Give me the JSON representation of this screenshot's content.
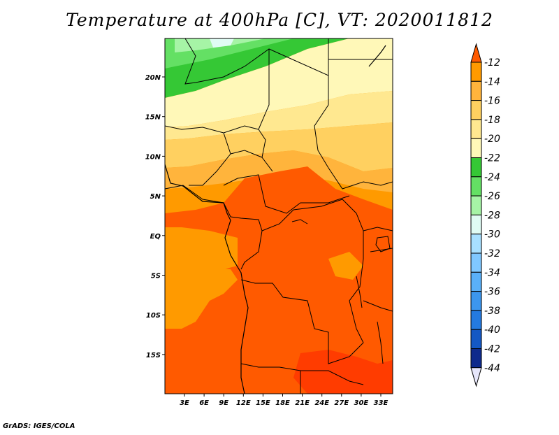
{
  "title": "Temperature at 400hPa [C], VT: 2020011812",
  "credit": "GrADS: IGES/COLA",
  "map": {
    "lon_labels": [
      "3E",
      "6E",
      "9E",
      "12E",
      "15E",
      "18E",
      "21E",
      "24E",
      "27E",
      "30E",
      "33E"
    ],
    "lat_labels": [
      "20N",
      "15N",
      "10N",
      "5N",
      "EQ",
      "5S",
      "10S",
      "15S"
    ]
  },
  "colorbar": {
    "levels": [
      "-12",
      "-14",
      "-16",
      "-18",
      "-20",
      "-22",
      "-24",
      "-26",
      "-28",
      "-30",
      "-32",
      "-34",
      "-36",
      "-38",
      "-40",
      "-42",
      "-44"
    ],
    "colors": [
      "#ff5a00",
      "#ff9a00",
      "#ffb43c",
      "#ffd060",
      "#ffe890",
      "#fff8b8",
      "#35c835",
      "#64e064",
      "#a6f4a6",
      "#e0fcf4",
      "#a8e0ff",
      "#80c8ff",
      "#5ab0f8",
      "#3c96ee",
      "#247ae0",
      "#1458c4",
      "#0e2a8c",
      "#06106a"
    ],
    "top_color": "#ff5a00",
    "bottom_color": "#e6e6fa"
  }
}
